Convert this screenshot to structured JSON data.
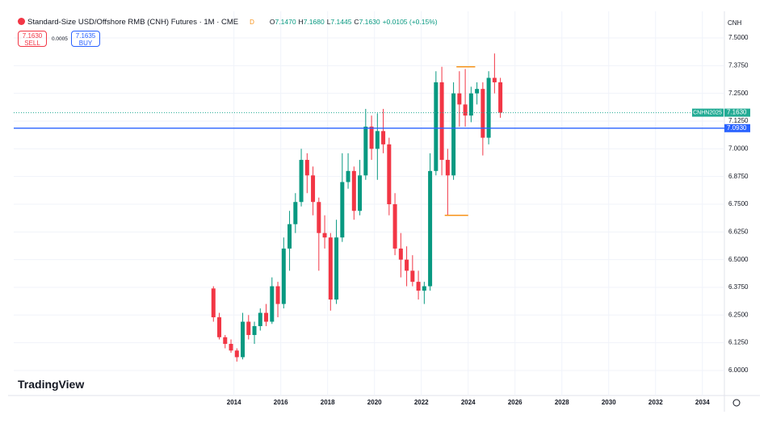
{
  "header": {
    "title": "Standard-Size USD/Offshore RMB (CNH) Futures · 1M · CME",
    "badge": "D",
    "ohlc": [
      {
        "label": "O",
        "value": "7.1470"
      },
      {
        "label": "H",
        "value": "7.1680"
      },
      {
        "label": "L",
        "value": "7.1445"
      },
      {
        "label": "C",
        "value": "7.1630"
      }
    ],
    "change": "+0.0105 (+0.15%)"
  },
  "trade": {
    "sell_price": "7.1630",
    "sell_label": "SELL",
    "spread": "0.0005",
    "buy_price": "7.1635",
    "buy_label": "BUY"
  },
  "currency": "CNH",
  "branding": "TradingView",
  "chart_data": {
    "type": "candlestick",
    "x": [
      2013.125,
      2013.375,
      2013.625,
      2013.875,
      2014.125,
      2014.375,
      2014.625,
      2014.875,
      2015.125,
      2015.375,
      2015.625,
      2015.875,
      2016.125,
      2016.375,
      2016.625,
      2016.875,
      2017.125,
      2017.375,
      2017.625,
      2017.875,
      2018.125,
      2018.375,
      2018.625,
      2018.875,
      2019.125,
      2019.375,
      2019.625,
      2019.875,
      2020.125,
      2020.375,
      2020.625,
      2020.875,
      2021.125,
      2021.375,
      2021.625,
      2021.875,
      2022.125,
      2022.375,
      2022.625,
      2022.875,
      2023.125,
      2023.375,
      2023.625,
      2023.875,
      2024.125,
      2024.375,
      2024.625,
      2024.875,
      2025.125,
      2025.375
    ],
    "open": [
      6.37,
      6.24,
      6.15,
      6.12,
      6.09,
      6.06,
      6.22,
      6.16,
      6.2,
      6.26,
      6.22,
      6.38,
      6.3,
      6.55,
      6.66,
      6.76,
      6.95,
      6.88,
      6.76,
      6.62,
      6.6,
      6.32,
      6.6,
      6.85,
      6.9,
      6.72,
      6.88,
      7.1,
      7.0,
      7.08,
      7.02,
      6.75,
      6.55,
      6.5,
      6.45,
      6.4,
      6.36,
      6.38,
      6.9,
      7.3,
      6.95,
      6.88,
      7.25,
      7.2,
      7.15,
      7.25,
      7.27,
      7.05,
      7.32,
      7.3
    ],
    "high": [
      6.38,
      6.26,
      6.16,
      6.14,
      6.1,
      6.26,
      6.25,
      6.22,
      6.28,
      6.3,
      6.42,
      6.4,
      6.6,
      6.72,
      6.8,
      7.0,
      6.98,
      6.92,
      6.78,
      6.7,
      6.62,
      6.68,
      6.98,
      6.98,
      6.92,
      6.95,
      7.18,
      7.15,
      7.16,
      7.18,
      7.05,
      6.8,
      6.62,
      6.56,
      6.52,
      6.45,
      6.4,
      6.98,
      7.35,
      7.37,
      7.0,
      7.3,
      7.35,
      7.36,
      7.28,
      7.3,
      7.3,
      7.35,
      7.43,
      7.32
    ],
    "low": [
      6.22,
      6.14,
      6.1,
      6.08,
      6.04,
      6.05,
      6.14,
      6.12,
      6.18,
      6.2,
      6.21,
      6.24,
      6.28,
      6.45,
      6.62,
      6.74,
      6.8,
      6.7,
      6.45,
      6.55,
      6.27,
      6.3,
      6.58,
      6.82,
      6.68,
      6.7,
      6.86,
      6.95,
      6.86,
      6.98,
      6.7,
      6.52,
      6.42,
      6.38,
      6.38,
      6.32,
      6.3,
      6.36,
      6.88,
      6.88,
      6.7,
      6.86,
      7.1,
      7.1,
      7.12,
      7.2,
      6.97,
      7.02,
      7.25,
      7.14
    ],
    "close": [
      6.24,
      6.15,
      6.12,
      6.09,
      6.06,
      6.22,
      6.16,
      6.2,
      6.26,
      6.22,
      6.38,
      6.3,
      6.55,
      6.66,
      6.76,
      6.95,
      6.88,
      6.76,
      6.62,
      6.6,
      6.32,
      6.6,
      6.85,
      6.9,
      6.72,
      6.88,
      7.1,
      7.0,
      7.08,
      7.02,
      6.75,
      6.55,
      6.5,
      6.45,
      6.4,
      6.36,
      6.38,
      6.9,
      7.3,
      6.95,
      6.88,
      7.25,
      7.2,
      7.15,
      7.25,
      7.27,
      7.05,
      7.32,
      7.3,
      7.163
    ],
    "up_color": "#089981",
    "down_color": "#f23645",
    "xlim": [
      2004.6,
      2034.8
    ],
    "xticks": [
      2014,
      2016,
      2018,
      2020,
      2022,
      2024,
      2026,
      2028,
      2030,
      2032,
      2034
    ],
    "ylim": [
      5.887,
      7.562
    ],
    "yticks": [
      {
        "value": 6,
        "label": "6.0000"
      },
      {
        "value": 6.125,
        "label": "6.1250"
      },
      {
        "value": 6.25,
        "label": "6.2500"
      },
      {
        "value": 6.375,
        "label": "6.3750"
      },
      {
        "value": 6.5,
        "label": "6.5000"
      },
      {
        "value": 6.625,
        "label": "6.6250"
      },
      {
        "value": 6.75,
        "label": "6.7500"
      },
      {
        "value": 6.875,
        "label": "6.8750"
      },
      {
        "value": 7,
        "label": "7.0000"
      },
      {
        "value": 7.125,
        "label": "7.1250"
      },
      {
        "value": 7.25,
        "label": "7.2500"
      },
      {
        "value": 7.375,
        "label": "7.3750"
      },
      {
        "value": 7.5,
        "label": "7.5000"
      }
    ],
    "price_line": {
      "name": "CNHN2025",
      "value": 7.163,
      "value_label": "7.1630",
      "color": "#22ab94"
    },
    "alert_line": {
      "value": 7.093,
      "value_label": "7.0930",
      "color": "#2962ff"
    },
    "segments": [
      {
        "y": 7.37,
        "x": [
          2023.5,
          2024.3
        ],
        "color": "#f7931a"
      },
      {
        "y": 6.7,
        "x": [
          2023.0,
          2024.0
        ],
        "color": "#f7931a"
      }
    ]
  }
}
